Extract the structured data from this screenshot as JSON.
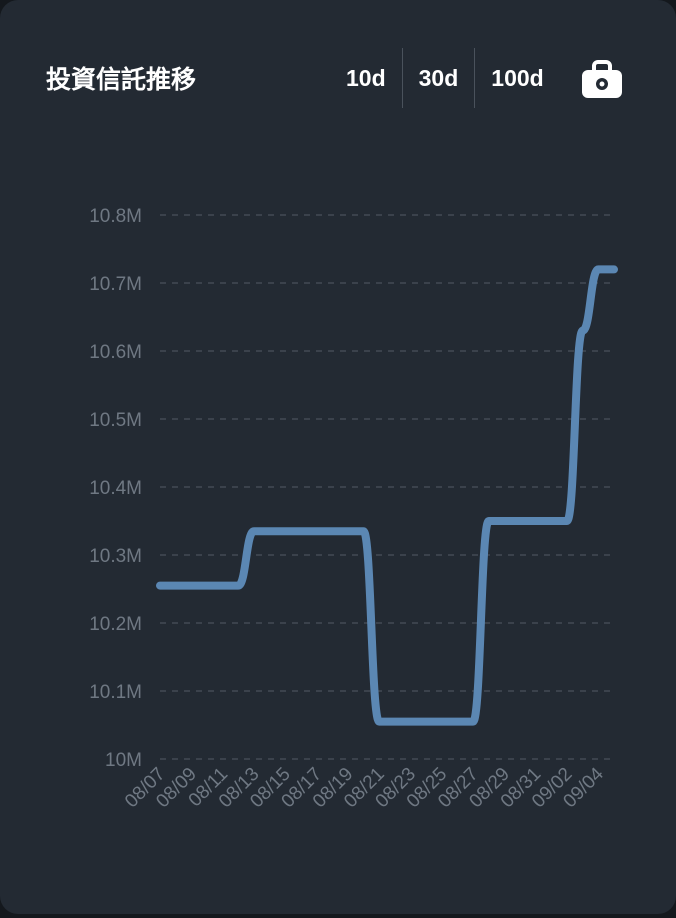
{
  "header": {
    "title": "投資信託推移",
    "ranges": [
      {
        "label": "10d"
      },
      {
        "label": "30d"
      },
      {
        "label": "100d"
      }
    ]
  },
  "icons": {
    "bag": "shopping-bag-icon"
  },
  "colors": {
    "card_bg": "#232a33",
    "line": "#5b87b3",
    "grid": "#4a525c",
    "tick": "#6f7883"
  },
  "chart_data": {
    "type": "line",
    "title": "投資信託推移",
    "xlabel": "",
    "ylabel": "",
    "ylim": [
      10000000,
      10800000
    ],
    "yticks": [
      {
        "value": 10000000,
        "label": "10M"
      },
      {
        "value": 10100000,
        "label": "10.1M"
      },
      {
        "value": 10200000,
        "label": "10.2M"
      },
      {
        "value": 10300000,
        "label": "10.3M"
      },
      {
        "value": 10400000,
        "label": "10.4M"
      },
      {
        "value": 10500000,
        "label": "10.5M"
      },
      {
        "value": 10600000,
        "label": "10.6M"
      },
      {
        "value": 10700000,
        "label": "10.7M"
      },
      {
        "value": 10800000,
        "label": "10.8M"
      }
    ],
    "categories": [
      "08/07",
      "08/08",
      "08/09",
      "08/10",
      "08/11",
      "08/12",
      "08/13",
      "08/14",
      "08/15",
      "08/16",
      "08/17",
      "08/18",
      "08/19",
      "08/20",
      "08/21",
      "08/22",
      "08/23",
      "08/24",
      "08/25",
      "08/26",
      "08/27",
      "08/28",
      "08/29",
      "08/30",
      "08/31",
      "09/01",
      "09/02",
      "09/03",
      "09/04",
      "09/05"
    ],
    "tick_labels": [
      "08/07",
      "08/09",
      "08/11",
      "08/13",
      "08/15",
      "08/17",
      "08/19",
      "08/21",
      "08/23",
      "08/25",
      "08/27",
      "08/29",
      "08/31",
      "09/02",
      "09/04"
    ],
    "series": [
      {
        "values": [
          10255000,
          10255000,
          10255000,
          10255000,
          10255000,
          10255000,
          10335000,
          10335000,
          10335000,
          10335000,
          10335000,
          10335000,
          10335000,
          10335000,
          10055000,
          10055000,
          10055000,
          10055000,
          10055000,
          10055000,
          10055000,
          10350000,
          10350000,
          10350000,
          10350000,
          10350000,
          10350000,
          10630000,
          10720000,
          10720000
        ]
      }
    ],
    "grid": true,
    "legend": "none"
  }
}
